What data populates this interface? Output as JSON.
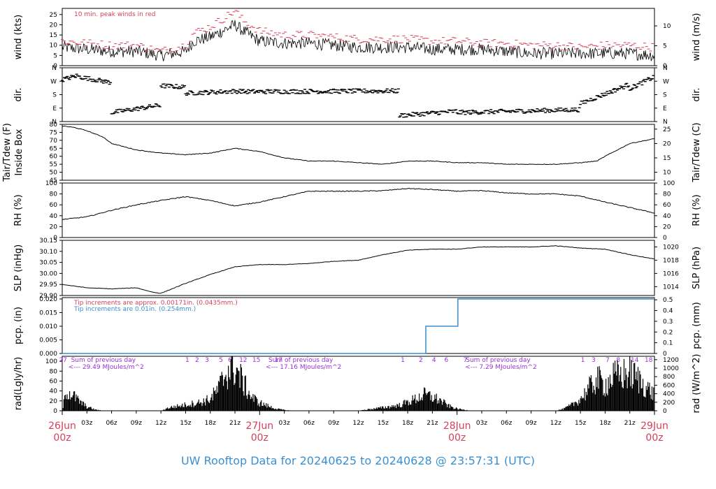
{
  "footer_title": "UW Rooftop Data for 20240625  to  20240628 @ 23:57:31  (UTC)",
  "colors": {
    "peak": "#d6405a",
    "tip_old": "#d6405a",
    "tip_new": "#3a8fd0",
    "purple": "#9b30d9",
    "title": "#3a8fd0",
    "day": "#d6405a"
  },
  "time_axis": {
    "hours_per_day": 24,
    "total_hours": 72,
    "hour_labels": [
      "03z",
      "06z",
      "09z",
      "12z",
      "15z",
      "18z",
      "21z"
    ],
    "days": [
      {
        "label": "26Jun",
        "sub": "00z"
      },
      {
        "label": "27Jun",
        "sub": "00z"
      },
      {
        "label": "28Jun",
        "sub": "00z"
      },
      {
        "label": "29Jun",
        "sub": "00z"
      }
    ]
  },
  "chart_data": [
    {
      "type": "line",
      "id": "wind",
      "title": "10 min. peak winds in red",
      "ylabel_left": "wind (kts)",
      "ylabel_right": "wind (m/s)",
      "ylim": [
        0,
        28
      ],
      "left_ticks": [
        0,
        5,
        10,
        15,
        20,
        25
      ],
      "right_ticks": [
        {
          "label": "0",
          "value": 0
        },
        {
          "label": "5",
          "value": 9.72
        },
        {
          "label": "10",
          "value": 19.44
        }
      ],
      "x_hours": [
        0,
        3,
        6,
        9,
        12,
        15,
        16,
        18,
        20,
        21,
        22,
        24,
        27,
        30,
        33,
        36,
        39,
        42,
        45,
        48,
        51,
        54,
        57,
        60,
        63,
        66,
        69,
        72
      ],
      "series": [
        {
          "role": "sustained",
          "values": [
            9,
            8,
            7,
            7,
            5,
            7,
            12,
            14,
            18,
            20,
            17,
            12,
            11,
            11,
            10,
            9,
            9,
            9,
            8,
            8,
            8,
            7,
            6,
            6,
            6,
            6,
            6,
            5
          ]
        },
        {
          "role": "peak",
          "values": [
            12,
            11,
            10,
            10,
            7,
            10,
            16,
            19,
            24,
            27,
            22,
            17,
            15,
            15,
            14,
            13,
            13,
            13,
            12,
            12,
            11,
            11,
            10,
            10,
            9,
            10,
            10,
            9
          ]
        }
      ]
    },
    {
      "type": "scatter",
      "id": "dir",
      "ylabel_left": "dir.",
      "ylabel_right": "dir.",
      "cardinal_labels": [
        "N",
        "E",
        "S",
        "W",
        "N"
      ],
      "cardinal_degrees": [
        0,
        90,
        180,
        270,
        360
      ],
      "segments": [
        {
          "x": [
            0,
            2
          ],
          "deg": [
            280,
            310
          ]
        },
        {
          "x": [
            2,
            6
          ],
          "deg": [
            300,
            260
          ]
        },
        {
          "x": [
            6,
            12
          ],
          "deg": [
            60,
            110
          ]
        },
        {
          "x": [
            12,
            15
          ],
          "deg": [
            240,
            230
          ]
        },
        {
          "x": [
            15,
            22
          ],
          "deg": [
            190,
            205
          ]
        },
        {
          "x": [
            22,
            41
          ],
          "deg": [
            200,
            205
          ]
        },
        {
          "x": [
            41,
            48
          ],
          "deg": [
            40,
            70
          ]
        },
        {
          "x": [
            48,
            63
          ],
          "deg": [
            60,
            80
          ]
        },
        {
          "x": [
            63,
            69
          ],
          "deg": [
            120,
            250
          ]
        },
        {
          "x": [
            69,
            72
          ],
          "deg": [
            220,
            300
          ]
        }
      ]
    },
    {
      "type": "line",
      "id": "temp",
      "ylabel_left": "Tair/Tdew (F)",
      "ylabel_left2": "Inside Box",
      "ylabel_right": "Tair/Tdew (C)",
      "ylim": [
        45,
        80
      ],
      "left_ticks": [
        45,
        50,
        55,
        60,
        65,
        70,
        75,
        80
      ],
      "right_ticks": [
        {
          "label": "10",
          "value": 50
        },
        {
          "label": "15",
          "value": 59
        },
        {
          "label": "20",
          "value": 68
        },
        {
          "label": "25",
          "value": 77
        }
      ],
      "x_hours": [
        0,
        1.5,
        3,
        5,
        6,
        9,
        12,
        15,
        18,
        21,
        24,
        27,
        30,
        33,
        36,
        39,
        42,
        45,
        48,
        51,
        54,
        57,
        60,
        63,
        65,
        66,
        69,
        72
      ],
      "values": [
        79,
        78,
        76,
        72,
        68,
        64,
        62,
        61,
        62,
        65,
        63,
        59,
        57,
        57,
        56,
        55,
        57,
        57,
        56,
        56,
        55,
        55,
        55,
        56,
        57,
        60,
        68,
        71
      ]
    },
    {
      "type": "line",
      "id": "rh",
      "ylabel_left": "RH (%)",
      "ylabel_right": "RH (%)",
      "ylim": [
        0,
        100
      ],
      "left_ticks": [
        0,
        20,
        40,
        60,
        80,
        100
      ],
      "right_ticks": [
        {
          "label": "0",
          "value": 0
        },
        {
          "label": "20",
          "value": 20
        },
        {
          "label": "40",
          "value": 40
        },
        {
          "label": "60",
          "value": 60
        },
        {
          "label": "80",
          "value": 80
        },
        {
          "label": "100",
          "value": 100
        }
      ],
      "x_hours": [
        0,
        3,
        6,
        9,
        12,
        15,
        18,
        21,
        24,
        27,
        30,
        33,
        36,
        39,
        42,
        45,
        48,
        51,
        54,
        57,
        60,
        63,
        66,
        69,
        72
      ],
      "values": [
        33,
        38,
        50,
        60,
        68,
        75,
        68,
        58,
        65,
        75,
        85,
        85,
        85,
        86,
        90,
        88,
        85,
        86,
        82,
        80,
        80,
        76,
        65,
        55,
        45
      ]
    },
    {
      "type": "line",
      "id": "slp",
      "ylabel_left": "SLP (inHg)",
      "ylabel_right": "SLP (hPa)",
      "ylim": [
        29.9,
        30.15
      ],
      "left_ticks": [
        29.9,
        29.95,
        30.0,
        30.05,
        30.1,
        30.15
      ],
      "left_tick_labels": [
        "29.90",
        "29.95",
        "30.00",
        "30.05",
        "30.10",
        "30.15"
      ],
      "right_ticks": [
        {
          "label": "1014",
          "value": 29.94
        },
        {
          "label": "1016",
          "value": 30.0
        },
        {
          "label": "1018",
          "value": 30.06
        },
        {
          "label": "1020",
          "value": 30.12
        }
      ],
      "x_hours": [
        0,
        3,
        6,
        9,
        11,
        12,
        15,
        18,
        21,
        24,
        27,
        30,
        33,
        36,
        39,
        42,
        45,
        48,
        51,
        54,
        57,
        60,
        63,
        66,
        69,
        72
      ],
      "values": [
        29.95,
        29.935,
        29.93,
        29.935,
        29.915,
        29.91,
        29.955,
        29.995,
        30.03,
        30.04,
        30.04,
        30.045,
        30.055,
        30.06,
        30.085,
        30.105,
        30.11,
        30.11,
        30.12,
        30.12,
        30.12,
        30.125,
        30.115,
        30.11,
        30.085,
        30.065
      ]
    },
    {
      "type": "line",
      "id": "pcp",
      "ylabel_left": "pcp. (in)",
      "ylabel_right": "pcp. (mm)",
      "note1": "Tip increments are approx. 0.00171in. (0.0435mm.)",
      "note2": "Tip increments are 0.01in. (0.254mm.)",
      "ylim": [
        0,
        0.0205
      ],
      "left_ticks": [
        0,
        0.005,
        0.01,
        0.015,
        0.02
      ],
      "left_tick_labels": [
        "0.000",
        "0.005",
        "0.010",
        "0.015",
        "0.020"
      ],
      "right_ticks": [
        {
          "label": "0",
          "value": 0
        },
        {
          "label": "0.1",
          "value": 0.003937
        },
        {
          "label": "0.2",
          "value": 0.007874
        },
        {
          "label": "0.3",
          "value": 0.011811
        },
        {
          "label": "0.4",
          "value": 0.015748
        },
        {
          "label": "0.5",
          "value": 0.019685
        }
      ],
      "steps": [
        {
          "x": 0,
          "y": 0
        },
        {
          "x": 44.2,
          "y": 0.01
        },
        {
          "x": 48.1,
          "y": 0.02
        },
        {
          "x": 72,
          "y": 0.02
        }
      ]
    },
    {
      "type": "bar",
      "id": "rad",
      "ylabel_left": "rad(Lgly/hr)",
      "ylabel_right": "rad (W/m^2)",
      "ylim": [
        0,
        110
      ],
      "left_ticks": [
        0,
        20,
        40,
        60,
        80,
        100
      ],
      "right_ticks": [
        {
          "label": "0",
          "value": 0
        },
        {
          "label": "200",
          "value": 17.2
        },
        {
          "label": "400",
          "value": 34.4
        },
        {
          "label": "600",
          "value": 51.6
        },
        {
          "label": "800",
          "value": 68.8
        },
        {
          "label": "1000",
          "value": 86.0
        },
        {
          "label": "1200",
          "value": 103.2
        }
      ],
      "sums": [
        {
          "x_hours": 5,
          "line1": "Sum of previous day",
          "line2": "<--- 29.49 MJoules/m^2"
        },
        {
          "x_hours": 29,
          "line1": "Sum of previous day",
          "line2": "<--- 17.16 MJoules/m^2"
        },
        {
          "x_hours": 53,
          "line1": "Sum of previous day",
          "line2": "<--- 7.29 MJoules/m^2"
        }
      ],
      "hour_marks": [
        {
          "x": 0.1,
          "t": "27"
        },
        {
          "x": 15.2,
          "t": "1"
        },
        {
          "x": 16.4,
          "t": "2"
        },
        {
          "x": 17.6,
          "t": "3"
        },
        {
          "x": 19.3,
          "t": "5"
        },
        {
          "x": 20.4,
          "t": "6"
        },
        {
          "x": 22.0,
          "t": "12"
        },
        {
          "x": 23.6,
          "t": "15"
        },
        {
          "x": 26.3,
          "t": "17"
        },
        {
          "x": 41.4,
          "t": "1"
        },
        {
          "x": 43.6,
          "t": "2"
        },
        {
          "x": 45.2,
          "t": "4"
        },
        {
          "x": 46.7,
          "t": "6"
        },
        {
          "x": 49.0,
          "t": "7"
        },
        {
          "x": 63.3,
          "t": "1"
        },
        {
          "x": 64.6,
          "t": "3"
        },
        {
          "x": 66.3,
          "t": "7"
        },
        {
          "x": 67.6,
          "t": "8"
        },
        {
          "x": 69.6,
          "t": "14"
        },
        {
          "x": 71.3,
          "t": "18"
        }
      ],
      "x_hours": [
        0,
        0.5,
        1,
        2,
        3,
        4,
        5,
        12,
        13,
        15,
        17,
        18,
        19,
        20,
        21,
        22,
        23,
        24,
        25,
        26,
        27,
        28,
        36,
        37,
        39,
        41,
        42,
        43,
        44,
        45,
        46,
        47,
        48,
        49,
        50,
        60,
        61,
        62,
        63,
        64,
        65,
        66,
        67,
        68,
        69,
        70,
        71,
        72
      ],
      "values": [
        0,
        50,
        45,
        25,
        10,
        3,
        0,
        0,
        8,
        15,
        22,
        30,
        55,
        100,
        110,
        70,
        35,
        20,
        12,
        5,
        2,
        0,
        0,
        3,
        8,
        14,
        22,
        30,
        40,
        35,
        25,
        12,
        5,
        2,
        0,
        0,
        5,
        15,
        30,
        55,
        80,
        65,
        85,
        90,
        95,
        80,
        60,
        40
      ]
    }
  ]
}
